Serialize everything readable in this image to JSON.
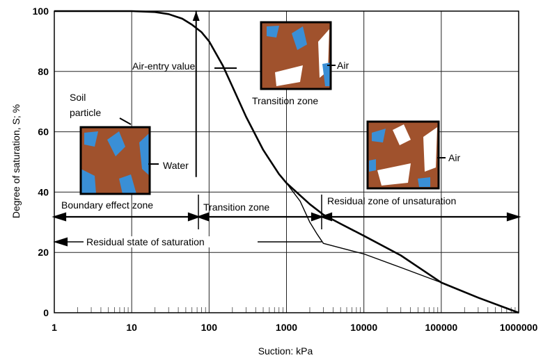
{
  "chart_data": {
    "type": "line",
    "xlabel": "Suction: kPa",
    "ylabel": "Degree of saturation, S; %",
    "xscale": "log",
    "xlim": [
      1,
      1000000
    ],
    "ylim": [
      0,
      100
    ],
    "grid": true,
    "x_ticks": [
      "1",
      "10",
      "100",
      "1000",
      "10000",
      "100000",
      "1000000"
    ],
    "y_ticks": [
      "0",
      "20",
      "40",
      "60",
      "80",
      "100"
    ],
    "series": [
      {
        "role": "main-curve",
        "x": [
          1,
          10,
          20,
          30,
          45,
          60,
          80,
          100,
          150,
          200,
          300,
          500,
          800,
          1000,
          2000,
          3000,
          5000,
          10000,
          30000,
          100000,
          300000,
          1000000
        ],
        "y": [
          100,
          100,
          99.7,
          99,
          97.5,
          95.5,
          93,
          90,
          82,
          75,
          65,
          54,
          46,
          43,
          36,
          32.5,
          29.5,
          25.5,
          19,
          10,
          5,
          0
        ]
      },
      {
        "role": "secondary-curve",
        "x": [
          1000,
          1500,
          2000,
          2500,
          3000,
          5000,
          10000,
          30000,
          100000,
          300000,
          1000000
        ],
        "y": [
          43,
          37,
          30,
          26,
          23,
          21.5,
          19.5,
          15,
          10,
          5,
          0
        ]
      },
      {
        "role": "air-entry-tangent",
        "x": [
          68,
          68,
          68
        ],
        "y": [
          45,
          100,
          97
        ]
      }
    ],
    "annotations": {
      "air_entry_value": "Air-entry value",
      "transition_zone_top": "Transition zone",
      "air_top": "Air",
      "soil_particle": "Soil\nparticle",
      "water": "Water",
      "air_right": "Air",
      "boundary_zone": "Boundary effect zone",
      "transition_zone": "Transition zone",
      "residual_zone": "Residual zone of unsaturation",
      "residual_state": "Residual state of saturation"
    },
    "colors": {
      "particle": "#a0522d",
      "water": "#3a8fd6",
      "air": "#ffffff",
      "line": "#000000"
    }
  }
}
